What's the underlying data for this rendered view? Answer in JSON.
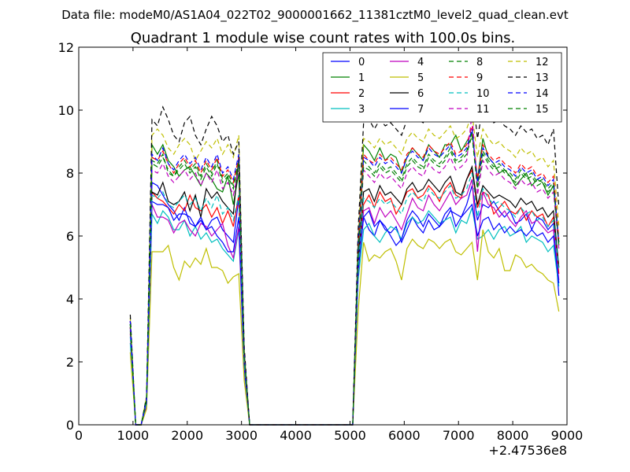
{
  "chart_data": {
    "type": "line",
    "suptitle": "Data file: modeM0/AS1A04_022T02_9000001662_11381cztM0_level2_quad_clean.evt",
    "title": "Quadrant 1 module wise count rates with 100.0s bins.",
    "xlabel": "",
    "ylabel": "",
    "x_offset_label": "+2.47536e8",
    "xlim": [
      0,
      9000
    ],
    "ylim": [
      0,
      12
    ],
    "xticks": [
      0,
      1000,
      2000,
      3000,
      4000,
      5000,
      6000,
      7000,
      8000,
      9000
    ],
    "yticks": [
      0,
      2,
      4,
      6,
      8,
      10,
      12
    ],
    "grid": false,
    "legend_position": "top-right",
    "legend_columns": 4,
    "x": [
      950,
      1050,
      1150,
      1250,
      1350,
      1450,
      1550,
      1650,
      1750,
      1850,
      1950,
      2050,
      2150,
      2250,
      2350,
      2450,
      2550,
      2650,
      2750,
      2850,
      2950,
      3050,
      3150,
      4000,
      5050,
      5150,
      5250,
      5350,
      5450,
      5550,
      5650,
      5750,
      5850,
      5950,
      6050,
      6150,
      6250,
      6350,
      6450,
      6550,
      6650,
      6750,
      6850,
      6950,
      7050,
      7150,
      7250,
      7350,
      7450,
      7550,
      7650,
      7750,
      7850,
      7950,
      8050,
      8150,
      8250,
      8350,
      8450,
      8550,
      8650,
      8750,
      8850
    ],
    "series": [
      {
        "name": "0",
        "color": "#0000ff",
        "dash": "solid",
        "values": [
          3.3,
          0,
          0,
          0.7,
          7.7,
          7.6,
          7.3,
          7.0,
          6.8,
          6.5,
          6.9,
          6.4,
          6.3,
          6.6,
          6.2,
          6.5,
          6.6,
          6.2,
          6.0,
          5.8,
          7.2,
          2.0,
          0,
          0,
          0,
          5.0,
          6.6,
          6.2,
          6.0,
          6.5,
          6.2,
          6.1,
          6.3,
          5.8,
          6.2,
          6.6,
          6.3,
          6.1,
          6.5,
          6.2,
          6.3,
          6.5,
          6.8,
          6.7,
          6.6,
          7.0,
          7.6,
          6.5,
          7.0,
          6.9,
          7.1,
          6.8,
          6.6,
          6.8,
          6.4,
          6.5,
          6.7,
          6.2,
          6.6,
          6.5,
          6.2,
          6.4,
          4.1
        ]
      },
      {
        "name": "1",
        "color": "#008000",
        "dash": "solid",
        "values": [
          3.0,
          0,
          0,
          0.8,
          8.9,
          8.6,
          8.9,
          8.4,
          8.2,
          7.9,
          8.1,
          8.2,
          7.9,
          7.6,
          8.0,
          7.8,
          7.5,
          7.4,
          7.9,
          7.0,
          8.0,
          2.2,
          0,
          0,
          0,
          5.6,
          8.9,
          8.7,
          8.4,
          8.8,
          8.4,
          8.6,
          8.5,
          8.0,
          8.5,
          8.8,
          8.6,
          8.4,
          8.9,
          8.7,
          8.5,
          8.9,
          8.9,
          9.2,
          8.7,
          9.0,
          9.3,
          7.8,
          9.1,
          8.5,
          8.3,
          8.0,
          8.1,
          7.9,
          7.6,
          7.8,
          8.0,
          7.6,
          7.8,
          7.7,
          7.3,
          7.6,
          5.7
        ]
      },
      {
        "name": "2",
        "color": "#ff0000",
        "dash": "solid",
        "values": [
          3.1,
          0,
          0,
          0.7,
          7.4,
          7.2,
          7.1,
          6.9,
          6.7,
          7.0,
          6.8,
          7.3,
          6.9,
          6.8,
          7.0,
          6.6,
          6.9,
          6.4,
          6.8,
          6.3,
          7.3,
          2.0,
          0,
          0,
          0,
          5.3,
          7.0,
          7.3,
          6.9,
          7.4,
          7.1,
          7.2,
          6.7,
          7.0,
          7.4,
          7.5,
          7.2,
          7.3,
          7.6,
          7.4,
          7.1,
          7.5,
          7.7,
          7.3,
          7.2,
          7.8,
          8.1,
          6.9,
          7.4,
          7.3,
          6.7,
          6.9,
          7.1,
          6.8,
          6.7,
          6.9,
          6.5,
          6.8,
          6.6,
          6.7,
          6.3,
          6.6,
          4.8
        ]
      },
      {
        "name": "3",
        "color": "#00bfbf",
        "dash": "solid",
        "values": [
          2.6,
          0,
          0,
          0.6,
          6.7,
          6.4,
          6.8,
          6.6,
          6.2,
          6.2,
          6.5,
          6.0,
          6.3,
          5.9,
          6.1,
          5.8,
          5.9,
          5.6,
          5.4,
          5.2,
          6.2,
          1.7,
          0,
          0,
          0,
          4.6,
          6.2,
          6.4,
          6.0,
          5.8,
          6.1,
          6.3,
          6.2,
          5.9,
          6.4,
          6.6,
          6.4,
          6.5,
          6.8,
          6.6,
          6.4,
          6.5,
          6.6,
          6.1,
          6.5,
          6.4,
          6.9,
          5.9,
          6.0,
          6.2,
          5.9,
          6.2,
          6.3,
          6.0,
          6.1,
          6.3,
          5.8,
          6.0,
          5.9,
          5.8,
          5.5,
          5.7,
          4.4
        ]
      },
      {
        "name": "4",
        "color": "#bf00bf",
        "dash": "solid",
        "values": [
          2.9,
          0,
          0,
          0.6,
          7.0,
          6.6,
          6.6,
          6.5,
          6.1,
          6.4,
          6.5,
          6.2,
          6.0,
          6.4,
          6.3,
          6.0,
          6.2,
          6.4,
          5.7,
          5.3,
          6.3,
          1.8,
          0,
          0,
          0,
          4.8,
          6.8,
          6.9,
          6.4,
          6.9,
          6.6,
          6.8,
          6.5,
          6.2,
          6.7,
          7.2,
          6.9,
          6.8,
          7.3,
          7.0,
          6.8,
          7.1,
          7.4,
          7.0,
          7.2,
          7.3,
          7.8,
          5.5,
          7.4,
          7.0,
          6.9,
          6.6,
          6.8,
          6.5,
          6.3,
          6.6,
          6.8,
          6.4,
          6.5,
          6.3,
          6.1,
          6.2,
          4.6
        ]
      },
      {
        "name": "5",
        "color": "#bfbf00",
        "dash": "solid",
        "values": [
          2.3,
          0,
          0,
          0.5,
          5.5,
          5.5,
          5.5,
          5.7,
          5.0,
          4.6,
          5.2,
          5.0,
          5.3,
          5.1,
          5.6,
          5.0,
          5.0,
          4.9,
          4.5,
          4.7,
          4.8,
          1.4,
          0,
          0,
          0,
          3.6,
          5.8,
          5.2,
          5.4,
          5.3,
          5.5,
          5.6,
          5.2,
          4.6,
          5.6,
          5.9,
          5.7,
          5.6,
          5.9,
          5.8,
          5.6,
          5.8,
          5.9,
          5.5,
          5.4,
          5.6,
          5.8,
          4.6,
          6.2,
          5.5,
          5.3,
          5.6,
          4.9,
          4.9,
          5.4,
          5.3,
          5.0,
          5.1,
          4.9,
          4.8,
          4.6,
          4.5,
          3.6
        ]
      },
      {
        "name": "6",
        "color": "#000000",
        "dash": "solid",
        "values": [
          3.1,
          0,
          0,
          0.7,
          7.4,
          7.3,
          7.7,
          7.1,
          7.0,
          7.1,
          7.4,
          6.8,
          7.3,
          6.6,
          7.5,
          7.2,
          7.4,
          7.1,
          6.9,
          6.7,
          8.5,
          2.1,
          0,
          0,
          0,
          5.2,
          7.4,
          7.5,
          7.1,
          7.6,
          7.3,
          7.4,
          7.2,
          7.0,
          7.5,
          7.7,
          7.4,
          7.5,
          7.8,
          7.6,
          7.4,
          7.7,
          7.9,
          7.4,
          7.3,
          7.8,
          8.2,
          7.0,
          7.6,
          7.4,
          7.2,
          7.3,
          7.2,
          7.1,
          6.9,
          7.2,
          7.0,
          7.1,
          6.8,
          6.9,
          6.6,
          6.8,
          5.0
        ]
      },
      {
        "name": "7",
        "color": "#0000ff",
        "dash": "solid",
        "values": [
          3.2,
          0,
          0,
          0.7,
          7.1,
          7.0,
          7.0,
          6.9,
          6.5,
          6.7,
          6.7,
          6.6,
          6.3,
          6.5,
          6.2,
          6.3,
          6.0,
          5.8,
          5.5,
          5.5,
          6.6,
          1.9,
          0,
          0,
          0,
          4.9,
          6.6,
          6.8,
          6.3,
          6.5,
          6.3,
          6.0,
          5.7,
          5.9,
          6.5,
          6.8,
          6.6,
          6.3,
          6.7,
          6.5,
          6.3,
          6.7,
          6.9,
          6.3,
          6.6,
          6.8,
          7.0,
          6.0,
          6.5,
          6.6,
          6.2,
          6.4,
          6.1,
          6.3,
          6.1,
          6.2,
          6.0,
          6.2,
          6.0,
          6.1,
          5.8,
          6.0,
          4.5
        ]
      },
      {
        "name": "8",
        "color": "#008000",
        "dash": "dashed",
        "values": [
          3.2,
          0,
          0,
          0.8,
          8.4,
          8.3,
          8.6,
          8.0,
          7.9,
          8.2,
          8.4,
          8.1,
          8.3,
          7.9,
          8.3,
          8.0,
          8.4,
          7.8,
          8.0,
          7.6,
          8.4,
          2.2,
          0,
          0,
          0,
          5.6,
          8.4,
          8.2,
          8.0,
          8.3,
          8.1,
          8.2,
          8.0,
          7.8,
          8.3,
          8.5,
          8.3,
          8.2,
          8.6,
          8.4,
          8.3,
          8.5,
          8.8,
          8.4,
          8.5,
          8.7,
          9.3,
          7.6,
          8.7,
          8.4,
          8.2,
          8.3,
          8.1,
          8.0,
          7.8,
          8.1,
          7.9,
          8.0,
          7.7,
          7.8,
          7.5,
          7.7,
          5.8
        ]
      },
      {
        "name": "9",
        "color": "#ff0000",
        "dash": "dashed",
        "values": [
          3.3,
          0,
          0,
          0.8,
          8.5,
          8.4,
          8.7,
          8.3,
          8.0,
          8.3,
          8.5,
          8.2,
          8.4,
          8.0,
          8.4,
          8.1,
          8.5,
          7.9,
          8.1,
          7.7,
          8.5,
          2.3,
          0,
          0,
          0,
          5.7,
          8.6,
          8.4,
          8.3,
          8.6,
          8.4,
          8.5,
          8.3,
          8.1,
          8.6,
          8.8,
          8.6,
          8.5,
          8.9,
          8.7,
          8.6,
          8.8,
          9.0,
          8.6,
          8.7,
          8.9,
          9.5,
          7.8,
          8.9,
          8.6,
          8.4,
          8.5,
          8.3,
          8.2,
          8.0,
          8.3,
          8.1,
          8.2,
          7.9,
          8.0,
          7.7,
          7.9,
          5.9
        ]
      },
      {
        "name": "10",
        "color": "#00bfbf",
        "dash": "dashed",
        "values": [
          2.8,
          0,
          0,
          0.7,
          7.3,
          7.2,
          7.4,
          7.0,
          6.9,
          7.1,
          7.3,
          7.0,
          7.2,
          6.8,
          7.2,
          6.9,
          7.3,
          6.7,
          6.9,
          6.5,
          7.3,
          2.0,
          0,
          0,
          0,
          5.0,
          7.2,
          7.1,
          6.9,
          7.2,
          7.0,
          7.1,
          6.9,
          6.7,
          7.2,
          7.4,
          7.2,
          7.1,
          7.5,
          7.3,
          7.2,
          7.4,
          7.6,
          7.2,
          7.3,
          7.5,
          8.0,
          6.6,
          7.5,
          7.2,
          7.0,
          7.1,
          6.9,
          6.8,
          6.6,
          6.9,
          6.7,
          6.8,
          6.5,
          6.6,
          6.3,
          6.5,
          4.9
        ]
      },
      {
        "name": "11",
        "color": "#bf00bf",
        "dash": "dashed",
        "values": [
          3.1,
          0,
          0,
          0.8,
          8.1,
          8.0,
          8.3,
          7.9,
          7.7,
          7.9,
          8.1,
          7.8,
          8.0,
          7.6,
          8.0,
          7.7,
          8.1,
          7.5,
          7.7,
          7.3,
          8.1,
          2.2,
          0,
          0,
          0,
          5.4,
          8.1,
          7.9,
          7.7,
          8.0,
          7.8,
          7.9,
          7.7,
          7.5,
          8.0,
          8.2,
          8.0,
          7.9,
          8.3,
          8.1,
          8.0,
          8.2,
          8.5,
          8.1,
          8.2,
          8.4,
          9.9,
          7.3,
          8.4,
          8.1,
          7.9,
          8.0,
          7.8,
          7.7,
          7.5,
          7.8,
          7.6,
          7.7,
          7.4,
          7.5,
          7.2,
          7.4,
          5.6
        ]
      },
      {
        "name": "12",
        "color": "#bfbf00",
        "dash": "dashed",
        "values": [
          3.4,
          0,
          0,
          0.9,
          9.2,
          9.4,
          9.2,
          8.8,
          8.6,
          8.9,
          9.1,
          8.9,
          8.4,
          8.7,
          9.0,
          8.8,
          9.1,
          8.6,
          8.9,
          8.5,
          9.2,
          2.4,
          0,
          0,
          0,
          6.0,
          9.1,
          9.0,
          8.8,
          9.1,
          8.9,
          9.0,
          8.8,
          8.6,
          9.1,
          9.3,
          9.1,
          9.0,
          9.4,
          9.2,
          9.1,
          9.3,
          9.5,
          9.1,
          9.2,
          9.4,
          9.9,
          8.5,
          9.4,
          9.1,
          8.9,
          9.0,
          8.8,
          8.7,
          8.5,
          8.8,
          8.6,
          8.7,
          8.4,
          8.5,
          8.2,
          8.4,
          6.3
        ]
      },
      {
        "name": "13",
        "color": "#000000",
        "dash": "dashed",
        "values": [
          3.5,
          0,
          0,
          0.9,
          9.7,
          9.5,
          10.1,
          9.7,
          9.2,
          9.0,
          9.6,
          9.8,
          9.2,
          8.9,
          9.4,
          9.8,
          9.5,
          9.0,
          9.2,
          8.6,
          9.0,
          2.5,
          0,
          0,
          0,
          6.2,
          9.6,
          9.7,
          9.4,
          9.7,
          9.5,
          9.6,
          9.4,
          9.2,
          9.7,
          9.9,
          9.7,
          9.6,
          10.0,
          9.8,
          9.7,
          9.9,
          10.2,
          9.8,
          9.9,
          10.1,
          10.7,
          9.1,
          10.1,
          10.9,
          9.6,
          9.7,
          9.5,
          9.4,
          9.2,
          9.5,
          9.3,
          9.4,
          9.1,
          9.2,
          8.9,
          9.4,
          6.9
        ]
      },
      {
        "name": "14",
        "color": "#0000ff",
        "dash": "dashed",
        "values": [
          3.3,
          0,
          0,
          0.8,
          8.6,
          8.4,
          8.8,
          8.3,
          8.1,
          8.4,
          8.6,
          8.3,
          8.5,
          8.1,
          8.5,
          8.2,
          8.6,
          8.0,
          8.2,
          7.8,
          8.6,
          2.3,
          0,
          0,
          0,
          5.7,
          8.5,
          8.4,
          8.2,
          8.5,
          8.3,
          8.4,
          8.2,
          8.0,
          8.5,
          8.7,
          8.5,
          8.4,
          8.8,
          8.6,
          8.5,
          8.7,
          8.9,
          8.5,
          8.6,
          8.8,
          9.4,
          7.7,
          8.8,
          8.5,
          8.3,
          8.4,
          8.2,
          8.1,
          7.9,
          8.2,
          8.0,
          8.1,
          7.8,
          7.9,
          7.6,
          7.8,
          5.8
        ]
      },
      {
        "name": "15",
        "color": "#008000",
        "dash": "dashed",
        "values": [
          3.2,
          0,
          0,
          0.8,
          8.3,
          8.2,
          8.5,
          8.1,
          7.9,
          8.1,
          8.3,
          8.0,
          8.2,
          7.8,
          8.2,
          7.9,
          8.3,
          7.7,
          7.9,
          7.5,
          8.3,
          2.2,
          0,
          0,
          0,
          5.5,
          8.2,
          8.1,
          7.9,
          8.2,
          8.0,
          8.1,
          7.9,
          7.7,
          8.2,
          8.4,
          8.2,
          8.1,
          8.5,
          8.3,
          8.2,
          8.4,
          8.7,
          8.3,
          8.4,
          8.6,
          9.2,
          7.5,
          8.6,
          8.3,
          8.1,
          8.2,
          8.0,
          7.9,
          7.7,
          8.0,
          7.8,
          7.9,
          7.6,
          7.7,
          7.4,
          7.6,
          5.7
        ]
      }
    ]
  }
}
